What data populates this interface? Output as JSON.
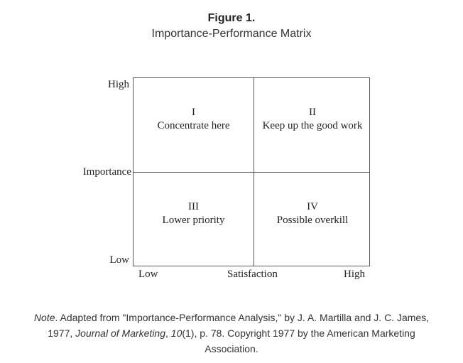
{
  "figure": {
    "number": "Figure 1.",
    "title": "Importance-Performance Matrix"
  },
  "matrix": {
    "quadrants": [
      {
        "numeral": "I",
        "label": "Concentrate here"
      },
      {
        "numeral": "II",
        "label": "Keep up the good work"
      },
      {
        "numeral": "III",
        "label": "Lower priority"
      },
      {
        "numeral": "IV",
        "label": "Possible overkill"
      }
    ],
    "y_axis": {
      "high": "High",
      "label": "Importance",
      "low": "Low"
    },
    "x_axis": {
      "low": "Low",
      "label": "Satisfaction",
      "high": "High"
    }
  },
  "note": {
    "prefix": "Note",
    "text_1": ". Adapted from \"Importance-Performance Analysis,\" by J. A. Martilla and J. C. James, 1977, ",
    "journal": "Journal of Marketing",
    "sep": ", ",
    "volume": "10",
    "text_2": "(1), p. 78. Copyright 1977 by the American Marketing Association."
  }
}
